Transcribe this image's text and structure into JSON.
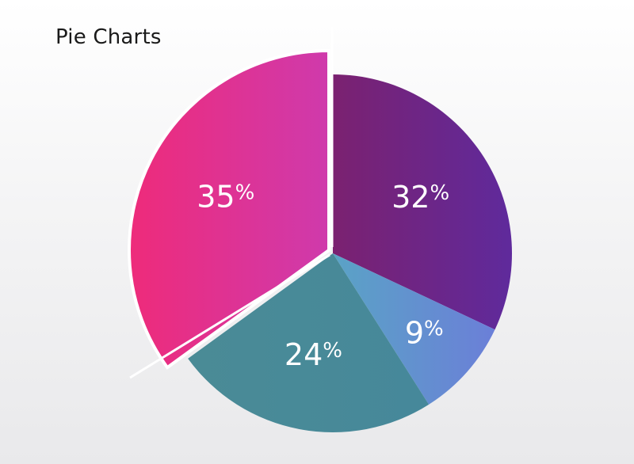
{
  "chart_data": {
    "type": "pie",
    "title": "Pie Charts",
    "slices": [
      {
        "label": "32%",
        "value": 32,
        "color_start": "#7b2170",
        "color_end": "#5f2a9c"
      },
      {
        "label": "9%",
        "value": 9,
        "color_start": "#5aa3c6",
        "color_end": "#6b7fd8"
      },
      {
        "label": "24%",
        "value": 24,
        "color_start": "#4a8b96",
        "color_end": "#46889a"
      },
      {
        "label": "35%",
        "value": 35,
        "color_start": "#ee2b7a",
        "color_end": "#cf3aac"
      }
    ],
    "exploded_slice": "35%",
    "legend": "none"
  }
}
